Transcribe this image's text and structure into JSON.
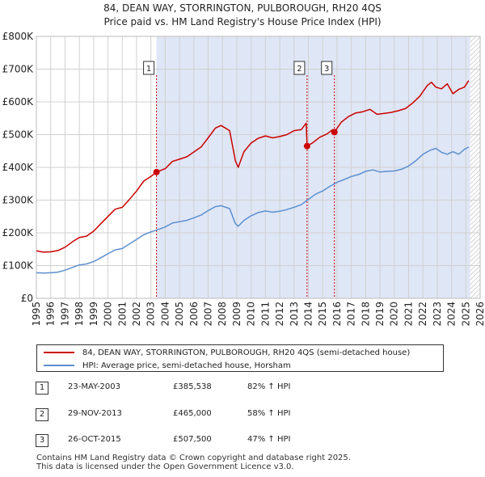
{
  "header": {
    "title_line1": "84, DEAN WAY, STORRINGTON, PULBOROUGH, RH20 4QS",
    "title_line2": "Price paid vs. HM Land Registry's House Price Index (HPI)"
  },
  "legend": {
    "property_label": "84, DEAN WAY, STORRINGTON, PULBOROUGH, RH20 4QS (semi-detached house)",
    "hpi_label": "HPI: Average price, semi-detached house, Horsham"
  },
  "colors": {
    "property": "#cc0000",
    "hpi": "#5b8fd0",
    "shade": "#dfe6f6",
    "grid": "#d0d0d0",
    "future_hatch": "#aaaaaa"
  },
  "sales": [
    {
      "badge": "1",
      "date": "23-MAY-2003",
      "price": "£385,538",
      "hpi_change": "82% ↑ HPI"
    },
    {
      "badge": "2",
      "date": "29-NOV-2013",
      "price": "£465,000",
      "hpi_change": "58% ↑ HPI"
    },
    {
      "badge": "3",
      "date": "26-OCT-2015",
      "price": "£507,500",
      "hpi_change": "47% ↑ HPI"
    }
  ],
  "footer": {
    "line1": "Contains HM Land Registry data © Crown copyright and database right 2025.",
    "line2": "This data is licensed under the Open Government Licence v3.0."
  },
  "chart_data": {
    "type": "line",
    "title": "84, DEAN WAY, STORRINGTON, PULBOROUGH, RH20 4QS",
    "subtitle": "Price paid vs. HM Land Registry's House Price Index (HPI)",
    "xlabel": "",
    "ylabel": "",
    "xlim": [
      1995,
      2026
    ],
    "ylim": [
      0,
      800000
    ],
    "grid": true,
    "x_ticks": [
      1995,
      1996,
      1997,
      1998,
      1999,
      2000,
      2001,
      2002,
      2003,
      2004,
      2005,
      2006,
      2007,
      2008,
      2009,
      2010,
      2011,
      2012,
      2013,
      2014,
      2015,
      2016,
      2017,
      2018,
      2019,
      2020,
      2021,
      2022,
      2023,
      2024,
      2025,
      2026
    ],
    "y_ticks": [
      {
        "value": 0,
        "label": "£0"
      },
      {
        "value": 100000,
        "label": "£100K"
      },
      {
        "value": 200000,
        "label": "£200K"
      },
      {
        "value": 300000,
        "label": "£300K"
      },
      {
        "value": 400000,
        "label": "£400K"
      },
      {
        "value": 500000,
        "label": "£500K"
      },
      {
        "value": 600000,
        "label": "£600K"
      },
      {
        "value": 700000,
        "label": "£700K"
      },
      {
        "value": 800000,
        "label": "£800K"
      }
    ],
    "shaded_from": 2003.39,
    "data_end": 2025.3,
    "series": [
      {
        "name": "84, DEAN WAY, STORRINGTON, PULBOROUGH, RH20 4QS (semi-detached house)",
        "x": [
          1995.0,
          1995.5,
          1996.0,
          1996.5,
          1997.0,
          1997.5,
          1998.0,
          1998.5,
          1999.0,
          1999.5,
          2000.0,
          2000.5,
          2001.0,
          2001.5,
          2002.0,
          2002.5,
          2003.0,
          2003.39,
          2004.0,
          2004.5,
          2005.0,
          2005.5,
          2006.0,
          2006.5,
          2007.0,
          2007.5,
          2007.9,
          2008.5,
          2008.9,
          2009.1,
          2009.5,
          2010.0,
          2010.5,
          2011.0,
          2011.5,
          2012.0,
          2012.5,
          2013.0,
          2013.5,
          2013.85,
          2013.91,
          2014.3,
          2014.8,
          2015.3,
          2015.7,
          2015.82,
          2016.3,
          2016.8,
          2017.3,
          2017.8,
          2018.3,
          2018.8,
          2019.3,
          2019.8,
          2020.3,
          2020.8,
          2021.3,
          2021.8,
          2022.3,
          2022.6,
          2022.9,
          2023.3,
          2023.7,
          2024.1,
          2024.5,
          2024.9,
          2025.2
        ],
        "y": [
          145000,
          141000,
          142000,
          146000,
          156000,
          172000,
          186000,
          190000,
          205000,
          228000,
          250000,
          272000,
          278000,
          302000,
          328000,
          358000,
          372000,
          385538,
          396000,
          418000,
          425000,
          432000,
          447000,
          462000,
          490000,
          520000,
          528000,
          512000,
          420000,
          400000,
          448000,
          474000,
          489000,
          496000,
          490000,
          494000,
          500000,
          512000,
          515000,
          535000,
          465000,
          475000,
          492000,
          502000,
          515000,
          507500,
          538000,
          555000,
          566000,
          570000,
          577000,
          562000,
          565000,
          568000,
          573000,
          580000,
          597000,
          618000,
          650000,
          660000,
          645000,
          640000,
          655000,
          625000,
          638000,
          645000,
          665000
        ]
      },
      {
        "name": "HPI: Average price, semi-detached house, Horsham",
        "x": [
          1995.0,
          1995.5,
          1996.0,
          1996.5,
          1997.0,
          1997.5,
          1998.0,
          1998.5,
          1999.0,
          1999.5,
          2000.0,
          2000.5,
          2001.0,
          2001.5,
          2002.0,
          2002.5,
          2003.0,
          2003.5,
          2004.0,
          2004.5,
          2005.0,
          2005.5,
          2006.0,
          2006.5,
          2007.0,
          2007.5,
          2007.9,
          2008.5,
          2008.9,
          2009.1,
          2009.5,
          2010.0,
          2010.5,
          2011.0,
          2011.5,
          2012.0,
          2012.5,
          2013.0,
          2013.5,
          2014.0,
          2014.5,
          2015.0,
          2015.5,
          2016.0,
          2016.5,
          2017.0,
          2017.5,
          2018.0,
          2018.5,
          2019.0,
          2019.5,
          2020.0,
          2020.5,
          2021.0,
          2021.5,
          2022.0,
          2022.5,
          2022.9,
          2023.3,
          2023.7,
          2024.1,
          2024.5,
          2024.9,
          2025.2
        ],
        "y": [
          78000,
          77000,
          78000,
          80000,
          86000,
          94000,
          102000,
          105000,
          112000,
          124000,
          136000,
          148000,
          152000,
          166000,
          180000,
          194000,
          203000,
          210000,
          218000,
          230000,
          234000,
          238000,
          246000,
          254000,
          268000,
          280000,
          283000,
          274000,
          228000,
          220000,
          238000,
          252000,
          262000,
          267000,
          263000,
          266000,
          271000,
          278000,
          286000,
          302000,
          318000,
          328000,
          342000,
          354000,
          363000,
          372000,
          378000,
          388000,
          392000,
          386000,
          388000,
          389000,
          394000,
          404000,
          420000,
          440000,
          452000,
          458000,
          446000,
          440000,
          448000,
          440000,
          455000,
          462000
        ]
      }
    ],
    "annotations": [
      {
        "label": "1",
        "x": 2003.39,
        "y": 385538
      },
      {
        "label": "2",
        "x": 2013.91,
        "y": 465000
      },
      {
        "label": "3",
        "x": 2015.82,
        "y": 507500
      }
    ]
  }
}
